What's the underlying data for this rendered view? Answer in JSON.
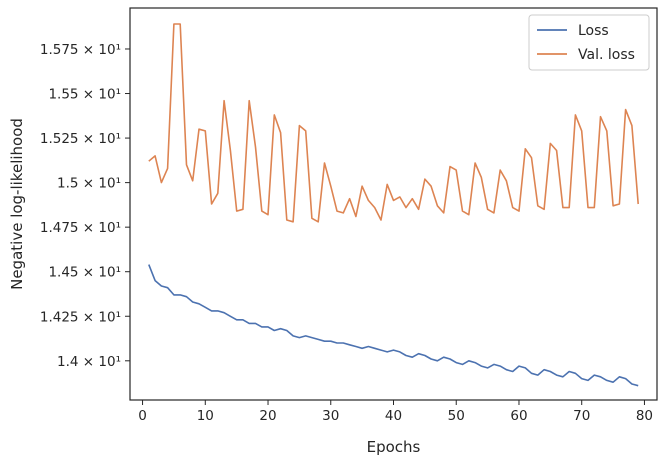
{
  "chart_data": {
    "type": "line",
    "xlabel": "Epochs",
    "ylabel": "Negative log-likelihood",
    "xlim": [
      -2,
      82
    ],
    "ylim": [
      13.78,
      15.98
    ],
    "x_ticks": [
      0,
      10,
      20,
      30,
      40,
      50,
      60,
      70,
      80
    ],
    "y_ticks": [
      {
        "value": 14.0,
        "label": "1.4 × 10¹"
      },
      {
        "value": 14.25,
        "label": "1.425 × 10¹"
      },
      {
        "value": 14.5,
        "label": "1.45 × 10¹"
      },
      {
        "value": 14.75,
        "label": "1.475 × 10¹"
      },
      {
        "value": 15.0,
        "label": "1.5 × 10¹"
      },
      {
        "value": 15.25,
        "label": "1.525 × 10¹"
      },
      {
        "value": 15.5,
        "label": "1.55 × 10¹"
      },
      {
        "value": 15.75,
        "label": "1.575 × 10¹"
      }
    ],
    "grid": false,
    "legend_position": "top-right",
    "x": [
      1,
      2,
      3,
      4,
      5,
      6,
      7,
      8,
      9,
      10,
      11,
      12,
      13,
      14,
      15,
      16,
      17,
      18,
      19,
      20,
      21,
      22,
      23,
      24,
      25,
      26,
      27,
      28,
      29,
      30,
      31,
      32,
      33,
      34,
      35,
      36,
      37,
      38,
      39,
      40,
      41,
      42,
      43,
      44,
      45,
      46,
      47,
      48,
      49,
      50,
      51,
      52,
      53,
      54,
      55,
      56,
      57,
      58,
      59,
      60,
      61,
      62,
      63,
      64,
      65,
      66,
      67,
      68,
      69,
      70,
      71,
      72,
      73,
      74,
      75,
      76,
      77,
      78,
      79
    ],
    "series": [
      {
        "name": "Loss",
        "color": "#4c72b0",
        "values": [
          14.54,
          14.45,
          14.42,
          14.41,
          14.37,
          14.37,
          14.36,
          14.33,
          14.32,
          14.3,
          14.28,
          14.28,
          14.27,
          14.25,
          14.23,
          14.23,
          14.21,
          14.21,
          14.19,
          14.19,
          14.17,
          14.18,
          14.17,
          14.14,
          14.13,
          14.14,
          14.13,
          14.12,
          14.11,
          14.11,
          14.1,
          14.1,
          14.09,
          14.08,
          14.07,
          14.08,
          14.07,
          14.06,
          14.05,
          14.06,
          14.05,
          14.03,
          14.02,
          14.04,
          14.03,
          14.01,
          14.0,
          14.02,
          14.01,
          13.99,
          13.98,
          14.0,
          13.99,
          13.97,
          13.96,
          13.98,
          13.97,
          13.95,
          13.94,
          13.97,
          13.96,
          13.93,
          13.92,
          13.95,
          13.94,
          13.92,
          13.91,
          13.94,
          13.93,
          13.9,
          13.89,
          13.92,
          13.91,
          13.89,
          13.88,
          13.91,
          13.9,
          13.87,
          13.86
        ]
      },
      {
        "name": "Val. loss",
        "color": "#dd8452",
        "values": [
          15.12,
          15.15,
          15.0,
          15.08,
          15.89,
          15.89,
          15.1,
          15.01,
          15.3,
          15.29,
          14.88,
          14.94,
          15.46,
          15.18,
          14.84,
          14.85,
          15.46,
          15.2,
          14.84,
          14.82,
          15.38,
          15.28,
          14.79,
          14.78,
          15.32,
          15.29,
          14.8,
          14.78,
          15.11,
          14.98,
          14.84,
          14.83,
          14.91,
          14.81,
          14.98,
          14.9,
          14.86,
          14.79,
          14.99,
          14.9,
          14.92,
          14.86,
          14.91,
          14.85,
          15.02,
          14.98,
          14.87,
          14.83,
          15.09,
          15.07,
          14.84,
          14.82,
          15.11,
          15.03,
          14.85,
          14.83,
          15.07,
          15.01,
          14.86,
          14.84,
          15.19,
          15.14,
          14.87,
          14.85,
          15.22,
          15.18,
          14.86,
          14.86,
          15.38,
          15.29,
          14.86,
          14.86,
          15.37,
          15.29,
          14.87,
          14.88,
          15.41,
          15.32,
          14.88
        ]
      }
    ]
  }
}
